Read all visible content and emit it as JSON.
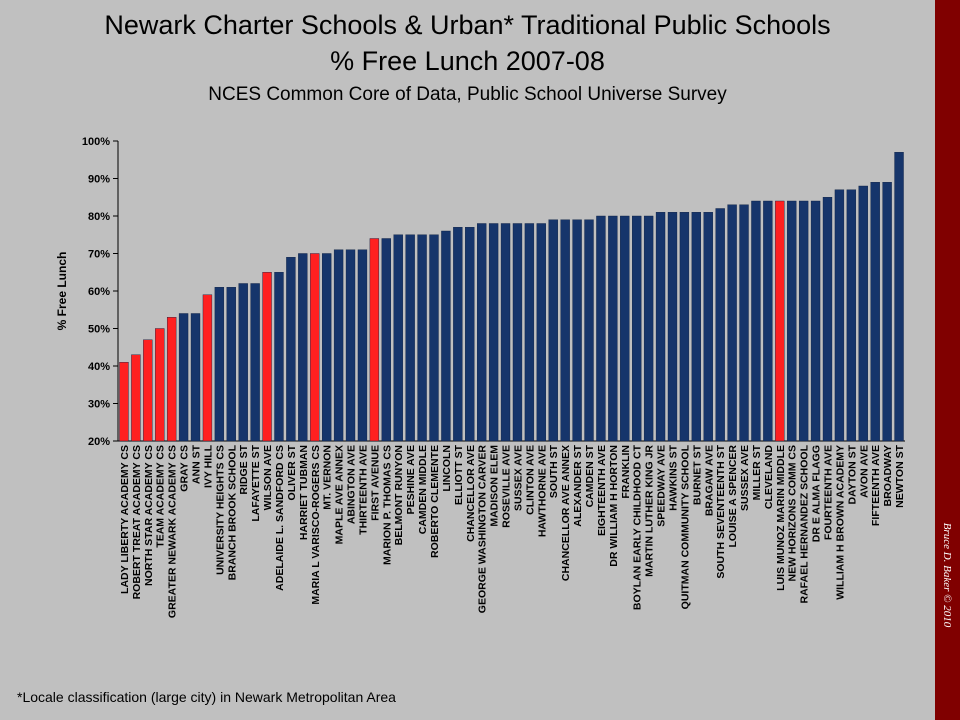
{
  "title_line1": "Newark Charter Schools & Urban* Traditional Public Schools",
  "title_line2": "% Free Lunch 2007-08",
  "subtitle": "NCES Common Core of Data, Public School Universe Survey",
  "footnote": "*Locale classification (large city) in Newark Metropolitan Area",
  "credit": "Bruce D. Baker © 2010",
  "colors": {
    "background": "#c0c0c0",
    "sidebar": "#800000",
    "charter": "#ff2020",
    "traditional": "#16356b"
  },
  "chart_data": {
    "type": "bar",
    "ylabel": "% Free Lunch",
    "ylim": [
      0.2,
      1.0
    ],
    "yticks": [
      "20%",
      "30%",
      "40%",
      "50%",
      "60%",
      "70%",
      "80%",
      "90%",
      "100%"
    ],
    "grid": false,
    "legend": "none",
    "categories": [
      "LADY LIBERTY ACADEMY CS",
      "ROBERT TREAT ACADEMY CS",
      "NORTH STAR ACADEMY CS",
      "TEAM ACADEMY CS",
      "GREATER NEWARK ACADEMY CS",
      "GRAY CS",
      "ANN ST",
      "IVY HILL",
      "UNIVERSITY HEIGHTS CS",
      "BRANCH BROOK SCHOOL",
      "RIDGE ST",
      "LAFAYETTE ST",
      "WILSON AVE",
      "ADELAIDE L. SANDFORD CS",
      "OLIVER ST",
      "HARRIET TUBMAN",
      "MARIA L VARISCO-ROGERS CS",
      "MT. VERNON",
      "MAPLE AVE ANNEX",
      "ABINGTON AVE",
      "THIRTEENTH AVE",
      "FIRST AVENUE",
      "MARION P. THOMAS CS",
      "BELMONT RUNYON",
      "PESHINE AVE",
      "CAMDEN MIDDLE",
      "ROBERTO CLEMENTE",
      "LINCOLN",
      "ELLIOTT ST",
      "CHANCELLOR AVE",
      "GEORGE WASHINGTON CARVER",
      "MADISON ELEM",
      "ROSEVILLE AVE",
      "SUSSEX AVE",
      "CLINTON AVE",
      "HAWTHORNE AVE",
      "SOUTH ST",
      "CHANCELLOR AVE ANNEX",
      "ALEXANDER ST",
      "CAMDEN ST",
      "EIGHTEENTH AVE",
      "DR WILLIAM H HORTON",
      "FRANKLIN",
      "BOYLAN EARLY CHILDHOOD CT",
      "MARTIN LUTHER KING JR",
      "SPEEDWAY AVE",
      "HAWKINS ST",
      "QUITMAN COMMUNITY SCHOOL",
      "BURNET ST",
      "BRAGAW AVE",
      "SOUTH SEVENTEENTH ST",
      "LOUISE A SPENCER",
      "SUSSEX AVE",
      "MILLER ST",
      "CLEVELAND",
      "LUIS MUNOZ MARIN MIDDLE",
      "NEW HORIZONS COMM CS",
      "RAFAEL HERNANDEZ SCHOOL",
      "DR E ALMA FLAGG",
      "FOURTEENTH AVE",
      "WILLIAM H BROWN ACADEMY",
      "DAYTON ST",
      "AVON AVE",
      "FIFTEENTH AVE",
      "BROADWAY",
      "NEWTON ST"
    ],
    "values": [
      0.41,
      0.43,
      0.47,
      0.5,
      0.53,
      0.54,
      0.54,
      0.59,
      0.61,
      0.61,
      0.62,
      0.62,
      0.65,
      0.65,
      0.69,
      0.7,
      0.7,
      0.7,
      0.71,
      0.71,
      0.71,
      0.74,
      0.74,
      0.75,
      0.75,
      0.75,
      0.75,
      0.76,
      0.77,
      0.77,
      0.78,
      0.78,
      0.78,
      0.78,
      0.78,
      0.78,
      0.79,
      0.79,
      0.79,
      0.79,
      0.8,
      0.8,
      0.8,
      0.8,
      0.8,
      0.81,
      0.81,
      0.81,
      0.81,
      0.81,
      0.82,
      0.83,
      0.83,
      0.84,
      0.84,
      0.84,
      0.84,
      0.84,
      0.84,
      0.85,
      0.87,
      0.87,
      0.88,
      0.89,
      0.89,
      0.97
    ],
    "charter": [
      true,
      true,
      true,
      true,
      true,
      false,
      false,
      true,
      false,
      false,
      false,
      false,
      true,
      false,
      false,
      false,
      true,
      false,
      false,
      false,
      false,
      true,
      false,
      false,
      false,
      false,
      false,
      false,
      false,
      false,
      false,
      false,
      false,
      false,
      false,
      false,
      false,
      false,
      false,
      false,
      false,
      false,
      false,
      false,
      false,
      false,
      false,
      false,
      false,
      false,
      false,
      false,
      false,
      false,
      false,
      true,
      false,
      false,
      false,
      false,
      false,
      false,
      false,
      false,
      false,
      false
    ]
  }
}
